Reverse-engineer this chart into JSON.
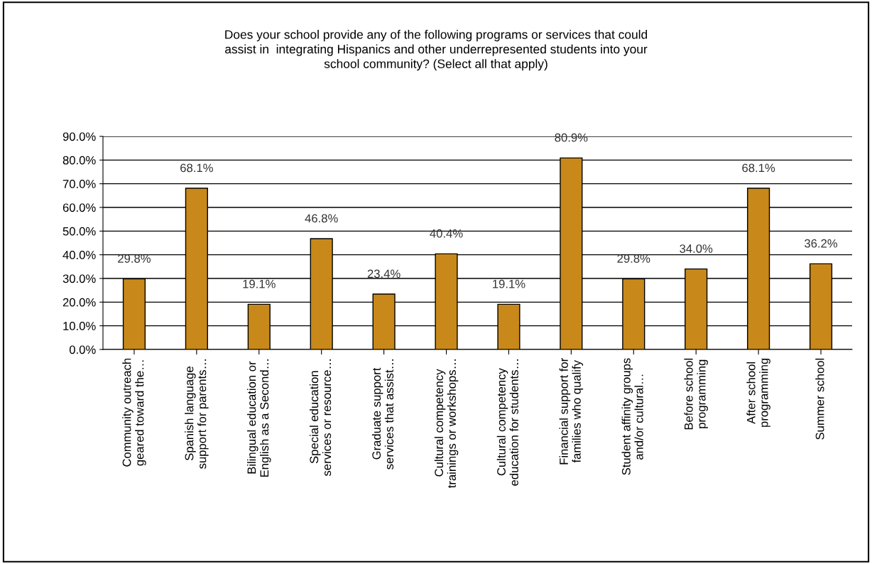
{
  "chart_data": {
    "type": "bar",
    "title": "Does your school provide any of the following programs or services that could\nassist in  integrating Hispanics and other underrepresented students into your\nschool community? (Select all that apply)",
    "categories": [
      "Community outreach\ngeared toward the…",
      "Spanish language\nsupport for parents…",
      "Bilingual education or\nEnglish as a Second…",
      "Special education\nservices or resource…",
      "Graduate support\nservices that assist…",
      "Cultural competency\ntrainings or workshops…",
      "Cultural competency\neducation for students…",
      "Financial support for\nfamilies who qualify",
      "Student affinity groups\nand/or cultural…",
      "Before school\nprogramming",
      "After school\nprogramming",
      "Summer school"
    ],
    "values": [
      29.8,
      68.1,
      19.1,
      46.8,
      23.4,
      40.4,
      19.1,
      80.9,
      29.8,
      34.0,
      68.1,
      36.2
    ],
    "value_labels": [
      "29.8%",
      "68.1%",
      "19.1%",
      "46.8%",
      "23.4%",
      "40.4%",
      "19.1%",
      "80.9%",
      "29.8%",
      "34.0%",
      "68.1%",
      "36.2%"
    ],
    "color": "#c8891a",
    "ylim": [
      0,
      90
    ],
    "yticks": [
      {
        "value": 0,
        "label": "0.0%"
      },
      {
        "value": 10,
        "label": "10.0%"
      },
      {
        "value": 20,
        "label": "20.0%"
      },
      {
        "value": 30,
        "label": "30.0%"
      },
      {
        "value": 40,
        "label": "40.0%"
      },
      {
        "value": 50,
        "label": "50.0%"
      },
      {
        "value": 60,
        "label": "60.0%"
      },
      {
        "value": 70,
        "label": "70.0%"
      },
      {
        "value": 80,
        "label": "80.0%"
      },
      {
        "value": 90,
        "label": "90.0%"
      }
    ],
    "grid": "y",
    "legend": false
  }
}
